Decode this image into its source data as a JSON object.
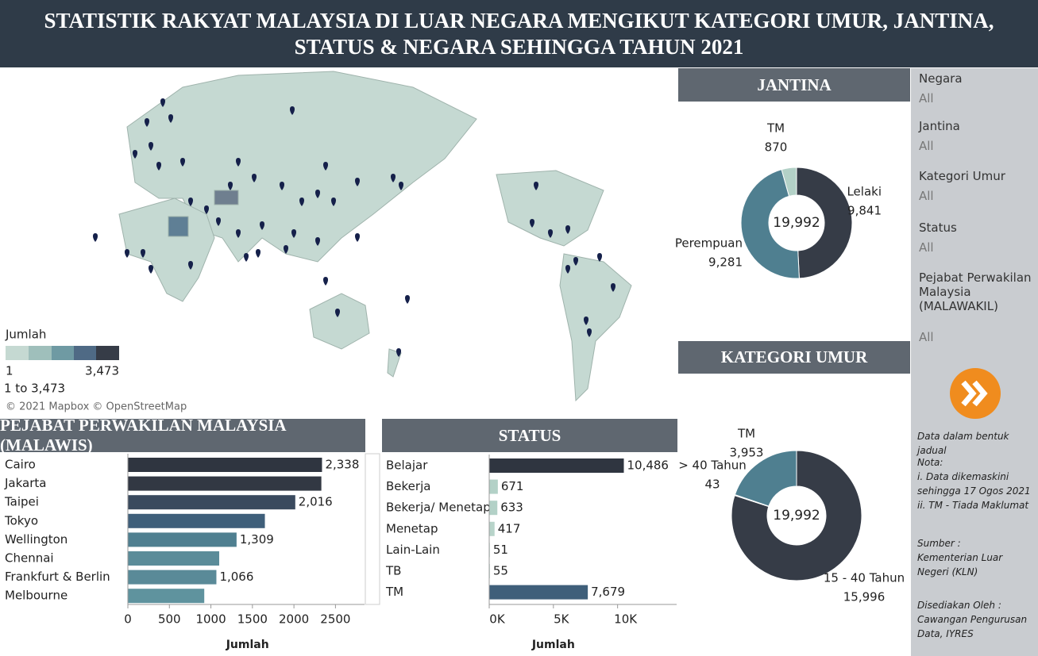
{
  "header": {
    "title": "STATISTIK RAKYAT MALAYSIA DI LUAR NEGARA MENGIKUT KATEGORI UMUR, JANTINA, STATUS & NEGARA SEHINGGA TAHUN 2021"
  },
  "map": {
    "legend_title": "Jumlah",
    "legend_min": "1",
    "legend_max": "3,473",
    "legend_range": "1 to 3,473",
    "attribution": "© 2021 Mapbox © OpenStreetMap"
  },
  "chart_data": [
    {
      "type": "hbar",
      "title": "PEJABAT PERWAKILAN MALAYSIA (MALAWIS)",
      "x_label": "Jumlah",
      "categories": [
        "Cairo",
        "Jakarta",
        "Taipei",
        "Tokyo",
        "Wellington",
        "Chennai",
        "Frankfurt & Berlin",
        "Melbourne"
      ],
      "values": [
        2338,
        2330,
        2016,
        1650,
        1309,
        1100,
        1066,
        920
      ],
      "value_labels": [
        "2,338",
        null,
        "2,016",
        null,
        "1,309",
        null,
        "1,066",
        null
      ],
      "colors": [
        "#2f3540",
        "#323843",
        "#3a4a5e",
        "#3f5f7a",
        "#4f7f90",
        "#5b8c99",
        "#5a8a98",
        "#5f939e"
      ],
      "xlim": [
        0,
        2850
      ],
      "xticks": [
        0,
        500,
        1000,
        1500,
        2000,
        2500
      ]
    },
    {
      "type": "hbar",
      "title": "STATUS",
      "x_label": "Jumlah",
      "categories": [
        "Belajar",
        "Bekerja",
        "Bekerja/ Menetap",
        " Menetap",
        "Lain-Lain",
        "TB",
        "TM"
      ],
      "values": [
        10486,
        671,
        633,
        417,
        51,
        55,
        7679
      ],
      "value_labels": [
        "10,486",
        "671",
        "633",
        "417",
        "51",
        "55",
        "7,679"
      ],
      "colors": [
        "#2f3540",
        "#b3d1c7",
        "#b3d1c7",
        "#b8d4ca",
        "#c5ddd5",
        "#c5ddd5",
        "#3f5f7a"
      ],
      "xlim": [
        0,
        14600
      ],
      "xticks": [
        {
          "value": 0,
          "label": "0K"
        },
        {
          "value": 5000,
          "label": "5K"
        },
        {
          "value": 10000,
          "label": "10K"
        }
      ]
    },
    {
      "type": "donut",
      "title": "JANTINA",
      "center_label": "19,992",
      "categories": [
        "Lelaki",
        "Perempuan",
        "TM"
      ],
      "values": [
        9841,
        9281,
        870
      ],
      "value_labels": [
        "9,841",
        "9,281",
        "870"
      ],
      "colors": [
        "#363c47",
        "#4f7f90",
        "#b3d1c7"
      ]
    },
    {
      "type": "donut",
      "title": "KATEGORI UMUR",
      "center_label": "19,992",
      "categories": [
        "15 - 40 Tahun",
        "> 40 Tahun",
        "TM"
      ],
      "values": [
        15996,
        43,
        3953
      ],
      "value_labels": [
        "15,996",
        "43",
        "3,953"
      ],
      "colors": [
        "#363c47",
        "#9fbfbb",
        "#4f7f90"
      ]
    }
  ],
  "filters": [
    {
      "label": "Negara",
      "value": "All"
    },
    {
      "label": "Jantina",
      "value": "All"
    },
    {
      "label": "Kategori Umur",
      "value": "All"
    },
    {
      "label": "Status",
      "value": "All"
    },
    {
      "label": "Pejabat Perwakilan Malaysia (MALAWAKIL)",
      "value": "All"
    }
  ],
  "notes": [
    "Data dalam bentuk jadual",
    "Nota:\ni. Data dikemaskini sehingga 17 Ogos 2021\nii. TM - Tiada Maklumat",
    "Sumber :\nKementerian Luar Negeri (KLN)",
    "Disediakan Oleh :\nCawangan Pengurusan Data, IYRES"
  ]
}
